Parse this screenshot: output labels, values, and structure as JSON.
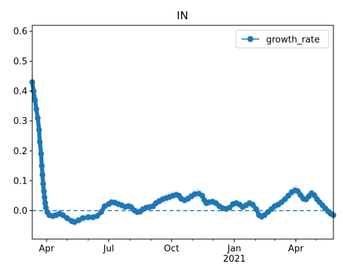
{
  "chart_data": {
    "type": "line",
    "title": "IN",
    "xlabel": "",
    "ylabel": "",
    "xlim": [
      "2020-03-11",
      "2021-05-26"
    ],
    "ylim": [
      -0.095,
      0.62
    ],
    "yticks": [
      0.0,
      0.1,
      0.2,
      0.3,
      0.4,
      0.5,
      0.6
    ],
    "ytick_labels": [
      "0.0",
      "0.1",
      "0.2",
      "0.3",
      "0.4",
      "0.5",
      "0.6"
    ],
    "xticks": [
      {
        "date": "2020-04-01",
        "label": "Apr",
        "sublabel": ""
      },
      {
        "date": "2020-07-01",
        "label": "Jul",
        "sublabel": ""
      },
      {
        "date": "2020-10-01",
        "label": "Oct",
        "sublabel": ""
      },
      {
        "date": "2021-01-01",
        "label": "Jan",
        "sublabel": "2021"
      },
      {
        "date": "2021-04-01",
        "label": "Apr",
        "sublabel": ""
      }
    ],
    "reference_line": {
      "y": 0.0,
      "style": "dashed"
    },
    "grid": false,
    "legend": {
      "placement": "top-right"
    },
    "series": [
      {
        "name": "growth_rate",
        "color": "#1f77b4",
        "band_color": "#cfe2f3",
        "marker": "circle",
        "points": [
          [
            "2020-03-11",
            0.43
          ],
          [
            "2020-03-13",
            0.4
          ],
          [
            "2020-03-15",
            0.37
          ],
          [
            "2020-03-17",
            0.34
          ],
          [
            "2020-03-19",
            0.31
          ],
          [
            "2020-03-21",
            0.27
          ],
          [
            "2020-03-22",
            0.23
          ],
          [
            "2020-03-24",
            0.19
          ],
          [
            "2020-03-25",
            0.15
          ],
          [
            "2020-03-26",
            0.12
          ],
          [
            "2020-03-27",
            0.09
          ],
          [
            "2020-03-28",
            0.065
          ],
          [
            "2020-03-29",
            0.045
          ],
          [
            "2020-03-30",
            0.025
          ],
          [
            "2020-03-31",
            0.01
          ],
          [
            "2020-04-02",
            -0.005
          ],
          [
            "2020-04-05",
            -0.015
          ],
          [
            "2020-04-10",
            -0.018
          ],
          [
            "2020-04-15",
            -0.015
          ],
          [
            "2020-04-20",
            -0.01
          ],
          [
            "2020-04-25",
            -0.015
          ],
          [
            "2020-05-01",
            -0.025
          ],
          [
            "2020-05-08",
            -0.035
          ],
          [
            "2020-05-12",
            -0.038
          ],
          [
            "2020-05-18",
            -0.032
          ],
          [
            "2020-05-24",
            -0.025
          ],
          [
            "2020-06-01",
            -0.022
          ],
          [
            "2020-06-08",
            -0.022
          ],
          [
            "2020-06-14",
            -0.018
          ],
          [
            "2020-06-20",
            -0.005
          ],
          [
            "2020-06-25",
            0.015
          ],
          [
            "2020-07-01",
            0.022
          ],
          [
            "2020-07-05",
            0.028
          ],
          [
            "2020-07-10",
            0.027
          ],
          [
            "2020-07-15",
            0.022
          ],
          [
            "2020-07-20",
            0.018
          ],
          [
            "2020-07-25",
            0.013
          ],
          [
            "2020-07-30",
            0.015
          ],
          [
            "2020-08-03",
            0.012
          ],
          [
            "2020-08-08",
            0.0
          ],
          [
            "2020-08-12",
            -0.005
          ],
          [
            "2020-08-16",
            -0.003
          ],
          [
            "2020-08-20",
            0.005
          ],
          [
            "2020-08-25",
            0.01
          ],
          [
            "2020-08-30",
            0.012
          ],
          [
            "2020-09-04",
            0.015
          ],
          [
            "2020-09-08",
            0.025
          ],
          [
            "2020-09-13",
            0.032
          ],
          [
            "2020-09-18",
            0.038
          ],
          [
            "2020-09-23",
            0.042
          ],
          [
            "2020-09-28",
            0.046
          ],
          [
            "2020-10-03",
            0.05
          ],
          [
            "2020-10-08",
            0.053
          ],
          [
            "2020-10-12",
            0.05
          ],
          [
            "2020-10-15",
            0.04
          ],
          [
            "2020-10-20",
            0.035
          ],
          [
            "2020-10-25",
            0.04
          ],
          [
            "2020-10-30",
            0.048
          ],
          [
            "2020-11-04",
            0.055
          ],
          [
            "2020-11-10",
            0.057
          ],
          [
            "2020-11-15",
            0.05
          ],
          [
            "2020-11-18",
            0.035
          ],
          [
            "2020-11-21",
            0.025
          ],
          [
            "2020-11-25",
            0.028
          ],
          [
            "2020-11-30",
            0.03
          ],
          [
            "2020-12-05",
            0.025
          ],
          [
            "2020-12-10",
            0.015
          ],
          [
            "2020-12-15",
            0.008
          ],
          [
            "2020-12-20",
            0.006
          ],
          [
            "2020-12-25",
            0.01
          ],
          [
            "2020-12-30",
            0.022
          ],
          [
            "2021-01-04",
            0.025
          ],
          [
            "2021-01-09",
            0.02
          ],
          [
            "2021-01-13",
            0.012
          ],
          [
            "2021-01-18",
            0.018
          ],
          [
            "2021-01-23",
            0.025
          ],
          [
            "2021-01-28",
            0.02
          ],
          [
            "2021-02-02",
            0.005
          ],
          [
            "2021-02-06",
            -0.015
          ],
          [
            "2021-02-10",
            -0.02
          ],
          [
            "2021-02-14",
            -0.015
          ],
          [
            "2021-02-19",
            -0.005
          ],
          [
            "2021-02-24",
            0.005
          ],
          [
            "2021-03-01",
            0.015
          ],
          [
            "2021-03-06",
            0.02
          ],
          [
            "2021-03-11",
            0.028
          ],
          [
            "2021-03-16",
            0.038
          ],
          [
            "2021-03-21",
            0.05
          ],
          [
            "2021-03-26",
            0.062
          ],
          [
            "2021-03-31",
            0.068
          ],
          [
            "2021-04-04",
            0.065
          ],
          [
            "2021-04-08",
            0.052
          ],
          [
            "2021-04-12",
            0.04
          ],
          [
            "2021-04-16",
            0.038
          ],
          [
            "2021-04-20",
            0.048
          ],
          [
            "2021-04-24",
            0.058
          ],
          [
            "2021-04-28",
            0.052
          ],
          [
            "2021-05-02",
            0.038
          ],
          [
            "2021-05-06",
            0.028
          ],
          [
            "2021-05-10",
            0.018
          ],
          [
            "2021-05-14",
            0.008
          ],
          [
            "2021-05-18",
            -0.002
          ],
          [
            "2021-05-22",
            -0.01
          ],
          [
            "2021-05-26",
            -0.015
          ]
        ]
      }
    ]
  }
}
